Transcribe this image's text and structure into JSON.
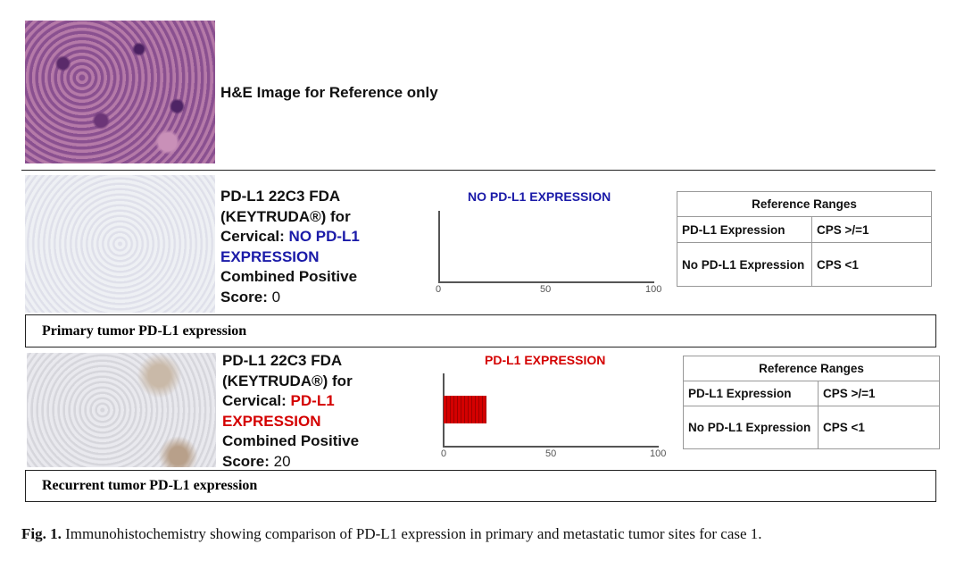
{
  "reference_panel": {
    "label": "H&E Image for Reference only"
  },
  "panels": [
    {
      "text_prefix": "PD-L1 22C3 FDA (KEYTRUDA®) for Cervical: ",
      "status": "NO PD-L1 EXPRESSION",
      "score_label": "Combined Positive Score: ",
      "score": "0",
      "caption": "Primary tumor PD-L1 expression",
      "chart_data": {
        "type": "bar",
        "title": "NO PD-L1 EXPRESSION",
        "values": [
          0
        ],
        "xlim": [
          0,
          100
        ],
        "x_ticks": [
          "0",
          "50",
          "100"
        ],
        "color": "#1a1aa8"
      },
      "table": {
        "header": "Reference Ranges",
        "rows": [
          [
            "PD-L1 Expression",
            "CPS >/=1"
          ],
          [
            "No PD-L1 Expression",
            "CPS <1"
          ]
        ]
      }
    },
    {
      "text_prefix": "PD-L1 22C3 FDA (KEYTRUDA®) for Cervical: ",
      "status": "PD-L1 EXPRESSION",
      "score_label": "Combined Positive Score: ",
      "score": "20",
      "caption": "Recurrent tumor PD-L1 expression",
      "chart_data": {
        "type": "bar",
        "title": "PD-L1 EXPRESSION",
        "values": [
          20
        ],
        "xlim": [
          0,
          100
        ],
        "x_ticks": [
          "0",
          "50",
          "100"
        ],
        "color": "#d40000"
      },
      "table": {
        "header": "Reference Ranges",
        "rows": [
          [
            "PD-L1 Expression",
            "CPS >/=1"
          ],
          [
            "No PD-L1 Expression",
            "CPS <1"
          ]
        ]
      }
    }
  ],
  "figure_caption": {
    "label": "Fig. 1.",
    "text": " Immunohistochemistry showing comparison of PD-L1 expression in primary and metastatic tumor sites for case 1."
  }
}
